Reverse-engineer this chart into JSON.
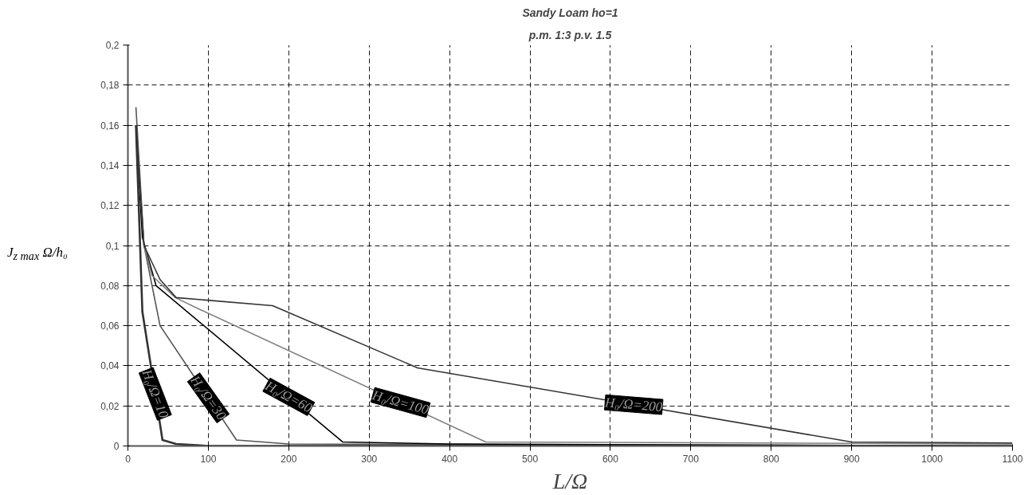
{
  "chart_data": {
    "type": "line",
    "title": "Sandy Loam ho=1",
    "subtitle": "p.m. 1:3 p.v. 1.5",
    "xlabel": "L/Ω",
    "ylabel": "J$_{z max}$ Ω/h₀",
    "xlim": [
      0,
      1100
    ],
    "ylim": [
      0,
      0.2
    ],
    "xticks": [
      0,
      100,
      200,
      300,
      400,
      500,
      600,
      700,
      800,
      900,
      1000,
      1100
    ],
    "yticks": [
      0,
      {
        "value": 0.02,
        "label": "0,02"
      },
      {
        "value": 0.04,
        "label": "0,04"
      },
      {
        "value": 0.06,
        "label": "0,06"
      },
      {
        "value": 0.08,
        "label": "0,08"
      },
      {
        "value": 0.1,
        "label": "0,1"
      },
      {
        "value": 0.12,
        "label": "0,12"
      },
      {
        "value": 0.14,
        "label": "0,14"
      },
      {
        "value": 0.16,
        "label": "0,16"
      },
      {
        "value": 0.18,
        "label": "0,18"
      },
      {
        "value": 0.2,
        "label": "0,2"
      }
    ],
    "grid": true,
    "marker": "none",
    "line_style": "solid",
    "series": [
      {
        "color": "#333333",
        "x": [
          10,
          18,
          43,
          60,
          100,
          1100
        ],
        "values": [
          0.16,
          0.067,
          0.003,
          0.001,
          0,
          0
        ]
      },
      {
        "color": "#555555",
        "x": [
          10,
          20,
          40,
          135,
          200,
          1100
        ],
        "values": [
          0.169,
          0.1,
          0.06,
          0.003,
          0.001,
          0
        ]
      },
      {
        "color": "#000000",
        "x": [
          10,
          18,
          35,
          267,
          400,
          1100
        ],
        "values": [
          0.16,
          0.104,
          0.08,
          0.002,
          0.001,
          0
        ]
      },
      {
        "color": "#808080",
        "x": [
          10,
          20,
          30,
          59,
          90,
          445,
          1100
        ],
        "values": [
          0.16,
          0.1,
          0.085,
          0.074,
          0.068,
          0.002,
          0.001
        ]
      },
      {
        "color": "#333333",
        "x": [
          10,
          20,
          40,
          60,
          180,
          360,
          900,
          1100
        ],
        "values": [
          0.16,
          0.1,
          0.083,
          0.074,
          0.07,
          0.039,
          0.002,
          0.0015
        ]
      }
    ],
    "annotations": [
      {
        "text": "H₀/Ω=10",
        "x": 34,
        "y": 0.026
      },
      {
        "text": "H₀/Ω=30",
        "x": 100,
        "y": 0.024
      },
      {
        "text": "H₀/Ω=60",
        "x": 200,
        "y": 0.0245
      },
      {
        "text": "H₀/Ω=100",
        "x": 339,
        "y": 0.0217
      },
      {
        "text": "H₀/Ω=200",
        "x": 629,
        "y": 0.0206
      }
    ]
  }
}
